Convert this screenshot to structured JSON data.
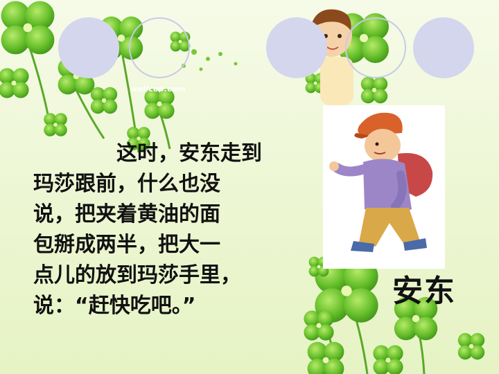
{
  "watermark": "wallcoo.com",
  "story_lines": [
    "这时，安东走到",
    "玛莎跟前，什么也没",
    "说，把夹着黄油的面",
    "包掰成两半，把大一",
    "点儿的放到玛莎手里，",
    "说：“赶快吃吧。”"
  ],
  "character_caption": "安东",
  "colors": {
    "background": "#eef7d6",
    "clover_green": "#5cb82a",
    "circle_fill": "#d4d6ee",
    "text": "#111111"
  }
}
